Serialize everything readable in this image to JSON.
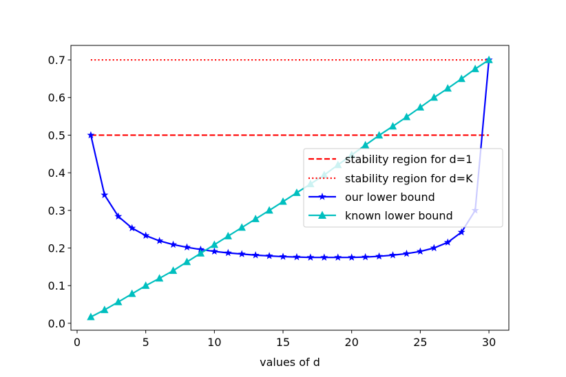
{
  "chart_data": {
    "type": "line",
    "title": "",
    "xlabel": "values of d",
    "ylabel": "",
    "xlim": [
      -0.45,
      31.45
    ],
    "ylim": [
      -0.0185,
      0.7385
    ],
    "xticks": [
      0,
      5,
      10,
      15,
      20,
      25,
      30
    ],
    "yticks": [
      0.0,
      0.1,
      0.2,
      0.3,
      0.4,
      0.5,
      0.6,
      0.7
    ],
    "ytick_labels": [
      "0.0",
      "0.1",
      "0.2",
      "0.3",
      "0.4",
      "0.5",
      "0.6",
      "0.7"
    ],
    "grid": false,
    "legend_position": "center-right",
    "x": [
      1,
      2,
      3,
      4,
      5,
      6,
      7,
      8,
      9,
      10,
      11,
      12,
      13,
      14,
      15,
      16,
      17,
      18,
      19,
      20,
      21,
      22,
      23,
      24,
      25,
      26,
      27,
      28,
      29,
      30
    ],
    "series": [
      {
        "name": "stability region for d=1",
        "style": "dashed",
        "color": "#ff0000",
        "marker": "none",
        "x": [
          1,
          30
        ],
        "values": [
          0.5,
          0.5
        ]
      },
      {
        "name": "stability region for d=K",
        "style": "dotted",
        "color": "#ff0000",
        "marker": "none",
        "x": [
          1,
          30
        ],
        "values": [
          0.7,
          0.7
        ]
      },
      {
        "name": "our lower bound",
        "style": "solid",
        "color": "#0000ff",
        "marker": "star",
        "values": [
          0.5,
          0.341,
          0.284,
          0.253,
          0.233,
          0.219,
          0.209,
          0.202,
          0.196,
          0.191,
          0.187,
          0.184,
          0.181,
          0.179,
          0.177,
          0.176,
          0.175,
          0.175,
          0.175,
          0.175,
          0.176,
          0.178,
          0.181,
          0.185,
          0.191,
          0.2,
          0.215,
          0.242,
          0.3,
          0.7
        ]
      },
      {
        "name": "known lower bound",
        "style": "solid",
        "color": "#00bfbf",
        "marker": "triangle",
        "values": [
          0.0167,
          0.0356,
          0.0565,
          0.0784,
          0.1,
          0.1194,
          0.1398,
          0.1631,
          0.1859,
          0.2088,
          0.2316,
          0.2544,
          0.2772,
          0.3,
          0.3234,
          0.3468,
          0.3701,
          0.3941,
          0.4208,
          0.4474,
          0.4735,
          0.4995,
          0.5235,
          0.5483,
          0.5739,
          0.6,
          0.6242,
          0.6497,
          0.676,
          0.7
        ]
      }
    ]
  }
}
